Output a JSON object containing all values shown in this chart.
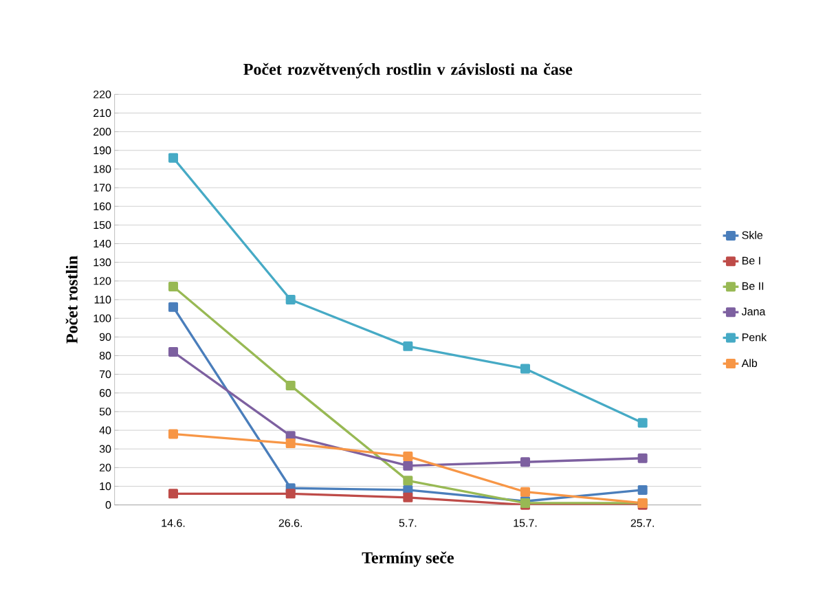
{
  "chart_data": {
    "type": "line",
    "title": "Počet rozvětvených rostlin v závislosti na čase",
    "xlabel": "Termíny seče",
    "ylabel": "Počet rostlin",
    "categories": [
      "14.6.",
      "26.6.",
      "5.7.",
      "15.7.",
      "25.7."
    ],
    "ylim": [
      0,
      220
    ],
    "yticks": [
      0,
      10,
      20,
      30,
      40,
      50,
      60,
      70,
      80,
      90,
      100,
      110,
      120,
      130,
      140,
      150,
      160,
      170,
      180,
      190,
      200,
      210,
      220
    ],
    "grid": "y",
    "legend": "right",
    "marker": "square",
    "series": [
      {
        "name": "Skle",
        "color": "#4a7ebb",
        "values": [
          106,
          9,
          8,
          2,
          8
        ]
      },
      {
        "name": "Be I",
        "color": "#be4b48",
        "values": [
          6,
          6,
          4,
          0,
          0
        ]
      },
      {
        "name": "Be II",
        "color": "#98b954",
        "values": [
          117,
          64,
          13,
          1,
          1
        ]
      },
      {
        "name": "Jana",
        "color": "#7d60a0",
        "values": [
          82,
          37,
          21,
          23,
          25
        ]
      },
      {
        "name": "Penk",
        "color": "#46aac5",
        "values": [
          186,
          110,
          85,
          73,
          44
        ]
      },
      {
        "name": "Alb",
        "color": "#f79646",
        "values": [
          38,
          33,
          26,
          7,
          1
        ]
      }
    ]
  }
}
